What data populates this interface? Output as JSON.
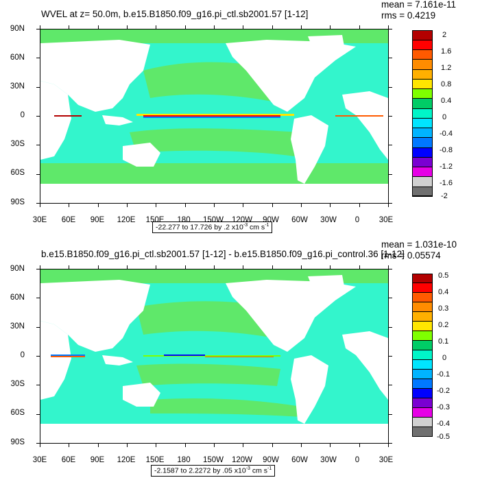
{
  "panels": [
    {
      "title": "WVEL at z=  50.0m, b.e15.B1850.f09_g16.pi_ctl.sb2001.57 [1-12]",
      "mean": "mean = 7.161e-11",
      "rms": "rms = 0.4219",
      "range": {
        "text": "-22.277 to 17.726 by .2 x10",
        "exp": "-3",
        "unit": " cm s",
        "unit_exp": "-1"
      },
      "colorbar_labels": [
        "2",
        "1.6",
        "1.2",
        "0.8",
        "0.4",
        "0",
        "-0.4",
        "-0.8",
        "-1.2",
        "-1.6",
        "-2"
      ]
    },
    {
      "title": "b.e15.B1850.f09_g16.pi_ctl.sb2001.57 [1-12] - b.e15.B1850.f09_g16.pi_control.36 [1-12]",
      "mean": "mean = 1.031e-10",
      "rms": "rms = 0.05574",
      "range": {
        "text": "-2.1587 to 2.2272 by .05 x10",
        "exp": "-3",
        "unit": " cm s",
        "unit_exp": "-1"
      },
      "colorbar_labels": [
        "0.5",
        "0.4",
        "0.3",
        "0.2",
        "0.1",
        "0",
        "-0.1",
        "-0.2",
        "-0.3",
        "-0.4",
        "-0.5"
      ]
    }
  ],
  "lat_labels": [
    "90N",
    "60N",
    "30N",
    "0",
    "30S",
    "60S",
    "90S"
  ],
  "lon_labels": [
    "30E",
    "60E",
    "90E",
    "120E",
    "150E",
    "180",
    "150W",
    "120W",
    "90W",
    "60W",
    "30W",
    "0",
    "30E"
  ],
  "colorbar_colors": [
    "#b30000",
    "#ff0000",
    "#ff5a00",
    "#ff8c00",
    "#ffb000",
    "#ffe600",
    "#7fff00",
    "#00cc66",
    "#00f5c8",
    "#00e5ff",
    "#00b4ff",
    "#0078ff",
    "#0000ff",
    "#7a00d2",
    "#e600e6",
    "#d0d0d0",
    "#707070"
  ],
  "colors": {
    "ocean": "#33f5cc",
    "ocean_green": "#5fe86a",
    "land": "#ffffff"
  }
}
